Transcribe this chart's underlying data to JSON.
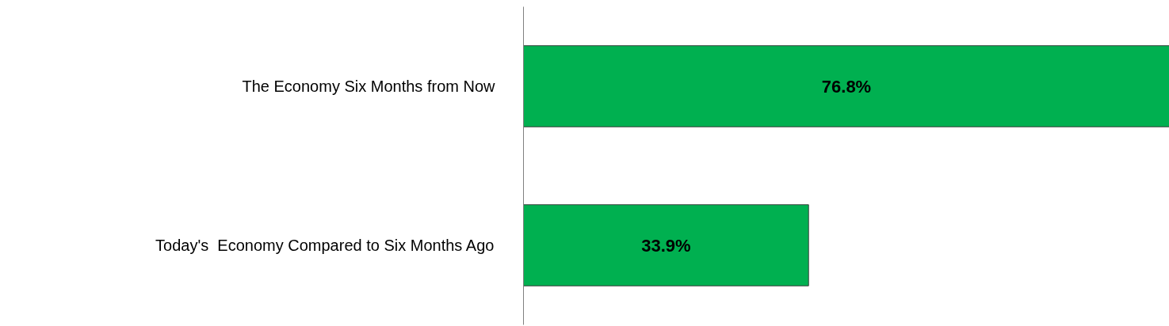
{
  "chart_data": {
    "type": "bar",
    "orientation": "horizontal",
    "categories": [
      "The Economy Six Months from Now",
      "Today's  Economy Compared to Six Months Ago"
    ],
    "values": [
      76.8,
      33.9
    ],
    "value_labels": [
      "76.8%",
      "33.9%"
    ],
    "color": "#00b050",
    "grid": false
  }
}
